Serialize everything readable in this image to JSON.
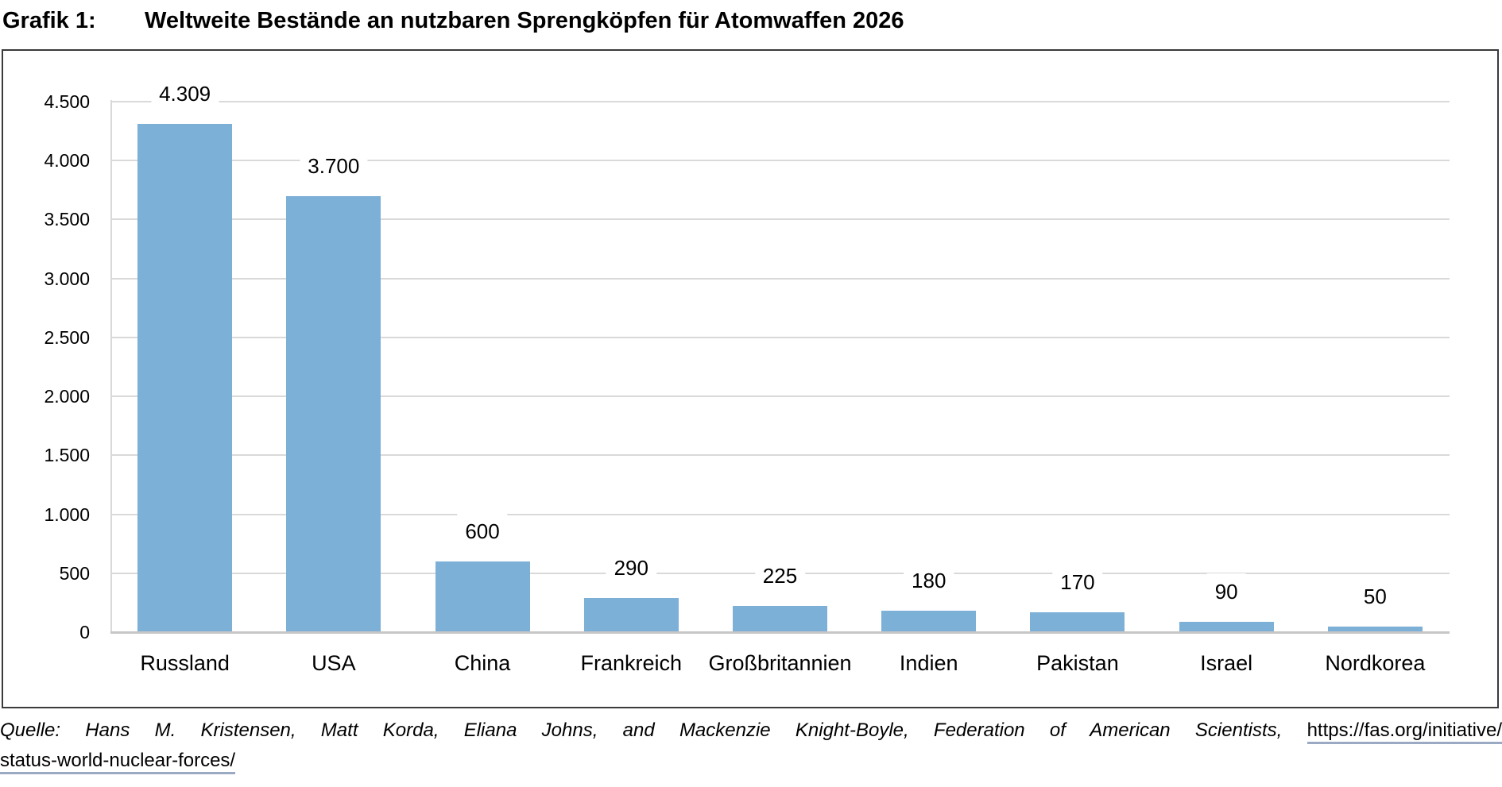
{
  "title": {
    "label": "Grafik 1:",
    "text": "Weltweite Bestände an nutzbaren Sprengköpfen für Atomwaffen 2026"
  },
  "chart_data": {
    "type": "bar",
    "title": "Weltweite Bestände an nutzbaren Sprengköpfen für Atomwaffen 2026",
    "categories": [
      "Russland",
      "USA",
      "China",
      "Frankreich",
      "Großbritannien",
      "Indien",
      "Pakistan",
      "Israel",
      "Nordkorea"
    ],
    "values": [
      4309,
      3700,
      600,
      290,
      225,
      180,
      170,
      90,
      50
    ],
    "value_labels": [
      "4.309",
      "3.700",
      "600",
      "290",
      "225",
      "180",
      "170",
      "90",
      "50"
    ],
    "xlabel": "",
    "ylabel": "",
    "ylim": [
      0,
      4500
    ],
    "y_ticks": [
      {
        "value": 4500,
        "label": "4.500"
      },
      {
        "value": 4000,
        "label": "4.000"
      },
      {
        "value": 3500,
        "label": "3.500"
      },
      {
        "value": 3000,
        "label": "3.000"
      },
      {
        "value": 2500,
        "label": "2.500"
      },
      {
        "value": 2000,
        "label": "2.000"
      },
      {
        "value": 1500,
        "label": "1.500"
      },
      {
        "value": 1000,
        "label": "1.000"
      },
      {
        "value": 500,
        "label": "500"
      },
      {
        "value": 0,
        "label": "0"
      }
    ],
    "grid": true,
    "legend": "none",
    "bar_color": "#7DB0D7"
  },
  "source": {
    "text_italic": "Quelle: Hans M. Kristensen, Matt Korda, Eliana Johns, and Mackenzie Knight-Boyle, Federation of American Scientists,",
    "link_part1": "https://fas.org/initiative/",
    "link_part2": "status-world-nuclear-forces/"
  },
  "colors": {
    "bar": "#7DB0D7",
    "gridline": "#D9D9D9",
    "axis_line": "#C6C6C6",
    "frame_border": "#3A3A3A",
    "link_underline": "#9AAAC2",
    "text": "#000000"
  }
}
